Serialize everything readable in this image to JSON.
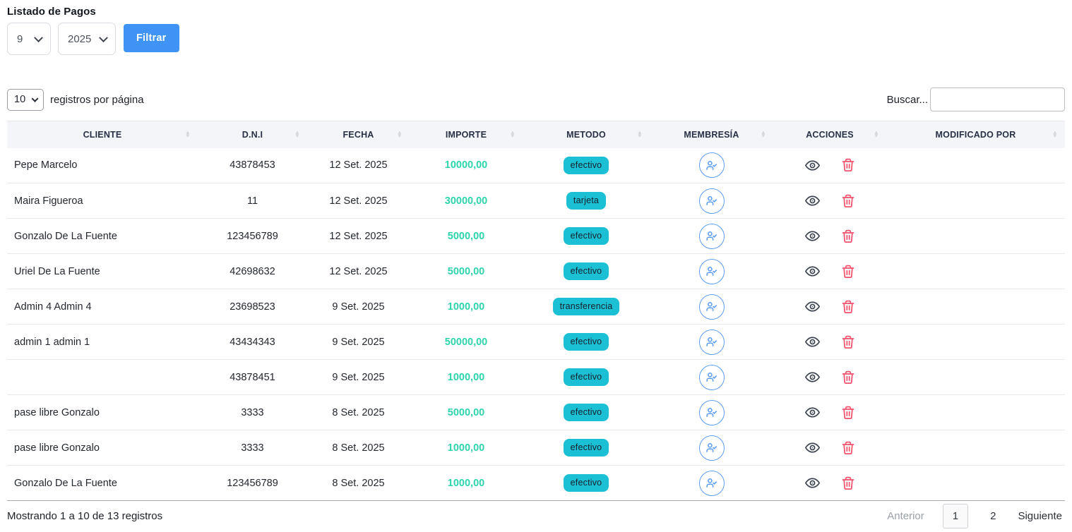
{
  "title": "Listado de Pagos",
  "filters": {
    "month_value": "9",
    "year_value": "2025",
    "filter_button_label": "Filtrar"
  },
  "table_controls": {
    "page_size_value": "10",
    "page_size_label": "registros por página",
    "search_label": "Buscar...",
    "search_value": ""
  },
  "table": {
    "columns": [
      "CLIENTE",
      "D.N.I",
      "FECHA",
      "IMPORTE",
      "METODO",
      "MEMBRESÍA",
      "ACCIONES",
      "MODIFICADO POR"
    ],
    "rows": [
      {
        "cliente": "Pepe Marcelo",
        "dni": "43878453",
        "fecha": "12 Set. 2025",
        "importe": "10000,00",
        "metodo": "efectivo",
        "modificado_por": ""
      },
      {
        "cliente": "Maira Figueroa",
        "dni": "11",
        "fecha": "12 Set. 2025",
        "importe": "30000,00",
        "metodo": "tarjeta",
        "modificado_por": ""
      },
      {
        "cliente": "Gonzalo De La Fuente",
        "dni": "123456789",
        "fecha": "12 Set. 2025",
        "importe": "5000,00",
        "metodo": "efectivo",
        "modificado_por": ""
      },
      {
        "cliente": "Uriel De La Fuente",
        "dni": "42698632",
        "fecha": "12 Set. 2025",
        "importe": "5000,00",
        "metodo": "efectivo",
        "modificado_por": ""
      },
      {
        "cliente": "Admin 4 Admin 4",
        "dni": "23698523",
        "fecha": "9 Set. 2025",
        "importe": "1000,00",
        "metodo": "transferencia",
        "modificado_por": ""
      },
      {
        "cliente": "admin 1 admin 1",
        "dni": "43434343",
        "fecha": "9 Set. 2025",
        "importe": "50000,00",
        "metodo": "efectivo",
        "modificado_por": ""
      },
      {
        "cliente": "",
        "dni": "43878451",
        "fecha": "9 Set. 2025",
        "importe": "1000,00",
        "metodo": "efectivo",
        "modificado_por": ""
      },
      {
        "cliente": "pase libre Gonzalo",
        "dni": "3333",
        "fecha": "8 Set. 2025",
        "importe": "5000,00",
        "metodo": "efectivo",
        "modificado_por": ""
      },
      {
        "cliente": "pase libre Gonzalo",
        "dni": "3333",
        "fecha": "8 Set. 2025",
        "importe": "1000,00",
        "metodo": "efectivo",
        "modificado_por": ""
      },
      {
        "cliente": "Gonzalo De La Fuente",
        "dni": "123456789",
        "fecha": "8 Set. 2025",
        "importe": "1000,00",
        "metodo": "efectivo",
        "modificado_por": ""
      }
    ]
  },
  "footer": {
    "summary": "Mostrando 1 a 10 de 13 registros",
    "prev_label": "Anterior",
    "pages": [
      "1",
      "2"
    ],
    "active_page": "1",
    "next_label": "Siguiente"
  },
  "icons": {
    "chevron_down": "chevron-down-icon",
    "sort": "sort-icon",
    "membership": "user-check-icon",
    "view": "eye-icon",
    "delete": "trash-icon"
  },
  "colors": {
    "accent_blue": "#3e93f5",
    "badge_cyan": "#1cc0d4",
    "importe_green": "#2fd3ad",
    "trash_red": "#f4536e",
    "member_circle_blue": "#5a9cf8",
    "header_bg": "#f4f5f8",
    "header_text": "#283046"
  }
}
